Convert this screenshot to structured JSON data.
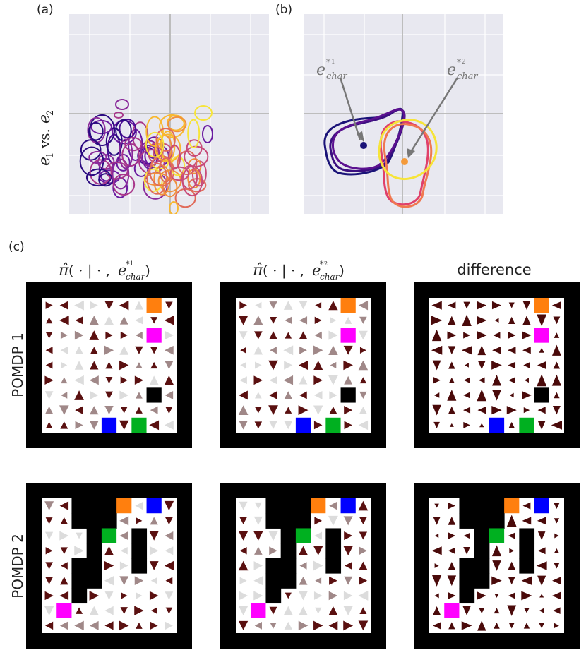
{
  "labels": {
    "a": "(a)",
    "b": "(b)",
    "c": "(c)"
  },
  "y_axis_label": "e_1 vs. e_2",
  "annotations": {
    "char1": "e*1 char",
    "char2": "e*2 char"
  },
  "column_headers": [
    "π̂( · | · , e*1 char)",
    "π̂( · | · , e*2 char)",
    "difference"
  ],
  "row_headers": [
    "POMDP 1",
    "POMDP 2"
  ],
  "colors": {
    "plot_bg": "#e8e8f0",
    "grid": "#ffffff",
    "axis_line": "#c0c0c0",
    "dark_blue": "#1a1378",
    "orange_point": "#f49a3a",
    "arrow_dark": "#4a0a0a",
    "goal_orange": "#ff7f0e",
    "goal_magenta": "#ff00ff",
    "goal_blue": "#0000ff",
    "goal_green": "#00b020",
    "wall": "#000000"
  },
  "chart_data": {
    "type": "scatter",
    "title": "",
    "xlabel": "",
    "ylabel": "e_1 vs. e_2",
    "grid": true
  }
}
